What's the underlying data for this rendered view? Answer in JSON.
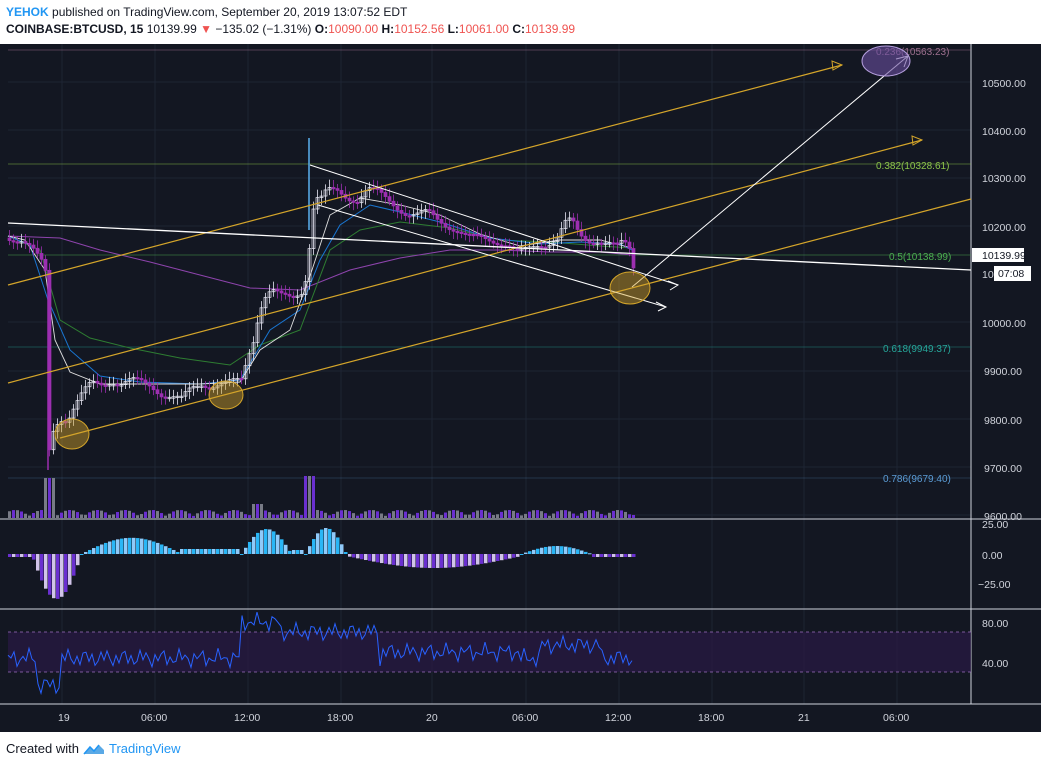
{
  "header": {
    "author": "YEHOK",
    "published_text": "published on TradingView.com, September 20, 2019 13:07:52 EDT",
    "symbol": "COINBASE:BTCUSD, 15",
    "last_price": "10139.99",
    "change_arrow": "▼",
    "change": "−135.02 (−1.31%)",
    "open_label": "O:",
    "open": "10090.00",
    "high_label": "H:",
    "high": "10152.56",
    "low_label": "L:",
    "low": "10061.00",
    "close_label": "C:",
    "close": "10139.99"
  },
  "price_axis": {
    "ticks": [
      "10500.00",
      "10400.00",
      "10300.00",
      "10200.00",
      "10000.00",
      "9900.00",
      "9800.00",
      "9700.00",
      "9600.00"
    ],
    "last_price_tag": "10139.99",
    "countdown_prefix": "10",
    "countdown": "07:08"
  },
  "fib_levels": [
    {
      "label": "0.236(10563.23)",
      "color": "#9c6f8e"
    },
    {
      "label": "0.382(10328.61)",
      "color": "#8bc34a"
    },
    {
      "label": "0.5(10138.99)",
      "color": "#4caf50"
    },
    {
      "label": "0.618(9949.37)",
      "color": "#26a69a"
    },
    {
      "label": "0.786(9679.40)",
      "color": "#5b9cd6"
    }
  ],
  "macd_axis": {
    "ticks": [
      "25.00",
      "0.00",
      "−25.00"
    ]
  },
  "rsi_axis": {
    "ticks": [
      "80.00",
      "40.00"
    ]
  },
  "time_axis": {
    "ticks": [
      "19",
      "06:00",
      "12:00",
      "18:00",
      "20",
      "06:00",
      "12:00",
      "18:00",
      "21",
      "06:00"
    ]
  },
  "footer": {
    "created_with": "Created with",
    "brand": "TradingView"
  },
  "colors": {
    "background": "#131722",
    "candle_up": "#e8e8f4",
    "candle_down": "#9c2fb0",
    "channel": "#d4a52a",
    "trendline": "#ffffff",
    "macd_pos": "#29b6f6",
    "macd_neg": "#6a2fd0",
    "rsi": "#2962ff",
    "highlight": "#d4a52a"
  },
  "icons": {
    "logo": "tradingview-logo-icon",
    "arrow": "down-triangle-icon"
  }
}
